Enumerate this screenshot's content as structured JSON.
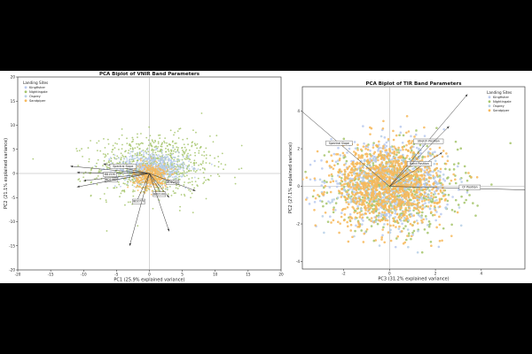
{
  "colors": {
    "Kingfisher": "#b9c9ee",
    "Nightingale": "#a4c46a",
    "Osprey": "#b6cfe6",
    "Sandpiper": "#f7b85b",
    "arrow": "#333333"
  },
  "chart_data": [
    {
      "type": "scatter",
      "title": "PCA Biplot of VNIR Band Parameters",
      "xlabel": "PC1 (25.9% explained variance)",
      "ylabel": "PC2 (21.1% explained variance)",
      "xlim": [
        -20,
        20
      ],
      "ylim": [
        -20,
        20
      ],
      "xticks": [
        -20,
        -15,
        -10,
        -5,
        0,
        5,
        10,
        15,
        20
      ],
      "yticks": [
        -20,
        -15,
        -10,
        -5,
        0,
        5,
        10,
        15,
        20
      ],
      "grid": false,
      "legend": {
        "title": "Landing Sites",
        "position": "top-left",
        "entries": [
          "Kingfisher",
          "Nightingale",
          "Osprey",
          "Sandpiper"
        ]
      },
      "series": [
        {
          "name": "Nightingale",
          "center": [
            0.5,
            1.5
          ],
          "spread": [
            4.5,
            3.2
          ],
          "n": 900
        },
        {
          "name": "Kingfisher",
          "center": [
            0.5,
            1.2
          ],
          "spread": [
            2.8,
            1.6
          ],
          "n": 500
        },
        {
          "name": "Osprey",
          "center": [
            0.5,
            1.0
          ],
          "spread": [
            2.4,
            1.4
          ],
          "n": 300
        },
        {
          "name": "Sandpiper",
          "center": [
            0.2,
            -0.6
          ],
          "spread": [
            1.3,
            1.3
          ],
          "n": 450
        }
      ],
      "loadings": [
        {
          "label": "Spectral Slope",
          "x": -7,
          "y": 2,
          "labeled": true,
          "label_at": [
            -4,
            1.5
          ]
        },
        {
          "label": "BD1530",
          "x": -11,
          "y": 0.2,
          "labeled": true,
          "label_at": [
            -6,
            -0.2
          ]
        },
        {
          "label": "BD1080",
          "x": -10,
          "y": -1.5,
          "labeled": true,
          "label_at": [
            -5.8,
            -1.3
          ]
        },
        {
          "label": "BD2290",
          "x": 3,
          "y": -5,
          "labeled": true,
          "label_at": [
            3.5,
            -1.8
          ]
        },
        {
          "label": "BD2100",
          "x": 2,
          "y": -4.5,
          "labeled": true,
          "label_at": [
            1.5,
            -4.3
          ]
        },
        {
          "label": "BD2770",
          "x": -2,
          "y": -6,
          "labeled": true,
          "label_at": [
            -1.6,
            -5.8
          ]
        },
        {
          "label": "",
          "x": -12,
          "y": 1.5,
          "labeled": false
        },
        {
          "label": "",
          "x": -11,
          "y": -2.8,
          "labeled": false
        },
        {
          "label": "",
          "x": -3,
          "y": -15,
          "labeled": false
        },
        {
          "label": "",
          "x": 3,
          "y": -12,
          "labeled": false
        },
        {
          "label": "",
          "x": 7,
          "y": -3.6,
          "labeled": false
        }
      ]
    },
    {
      "type": "scatter",
      "title": "PCA Biplot of TIR Band Parameters",
      "xlabel": "PC3 (31.2% explained variance)",
      "ylabel": "PC2 (27.1% explained variance)",
      "xlim": [
        -3.8,
        5.9
      ],
      "ylim": [
        -4.4,
        5.3
      ],
      "xticks": [
        -2,
        0,
        2,
        4
      ],
      "yticks": [
        -4,
        -2,
        0,
        2,
        4
      ],
      "grid": false,
      "legend": {
        "title": "Landing Sites",
        "position": "top-right",
        "entries": [
          "Kingfisher",
          "Nightingale",
          "Osprey",
          "Sandpiper"
        ]
      },
      "series": [
        {
          "name": "Nightingale",
          "center": [
            0.2,
            -0.1
          ],
          "spread": [
            1.4,
            1.1
          ],
          "n": 650
        },
        {
          "name": "Kingfisher",
          "center": [
            0.0,
            0.2
          ],
          "spread": [
            1.3,
            1.0
          ],
          "n": 500
        },
        {
          "name": "Osprey",
          "center": [
            0.0,
            0.0
          ],
          "spread": [
            1.2,
            1.0
          ],
          "n": 300
        },
        {
          "name": "Sandpiper",
          "center": [
            -0.1,
            0.1
          ],
          "spread": [
            1.2,
            1.1
          ],
          "n": 1100
        }
      ],
      "loadings": [
        {
          "label": "Spectral Slope",
          "x": -4.5,
          "y": 4.7,
          "labeled": true,
          "label_at": [
            -2.2,
            2.3
          ]
        },
        {
          "label": "Stretch Position",
          "x": 3.4,
          "y": 4.9,
          "labeled": true,
          "label_at": [
            1.7,
            2.4
          ]
        },
        {
          "label": "Band Position",
          "x": 2.3,
          "y": 1.8,
          "labeled": true,
          "label_at": [
            1.3,
            1.2
          ]
        },
        {
          "label": "CF Position",
          "x": 6.3,
          "y": -0.2,
          "labeled": true,
          "label_at": [
            3.5,
            -0.05
          ]
        },
        {
          "label": "",
          "x": 2.6,
          "y": 3.2,
          "labeled": false
        }
      ]
    }
  ]
}
